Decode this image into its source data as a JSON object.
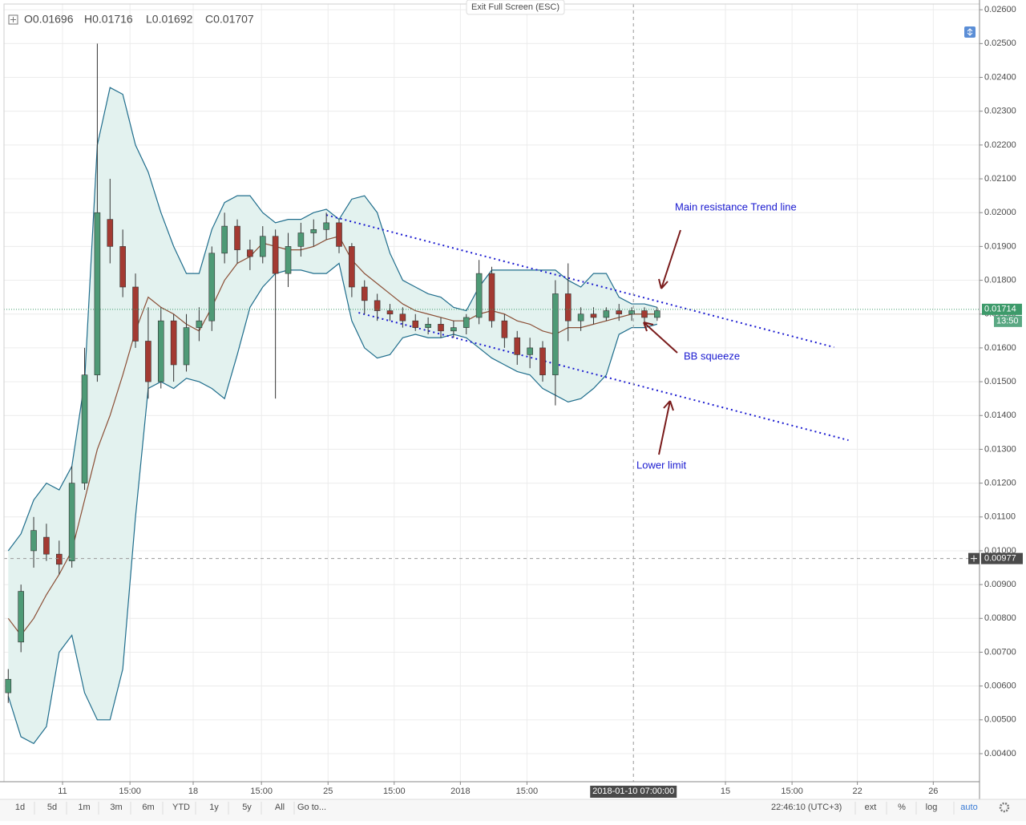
{
  "header_ohlc": [
    "O0.01696",
    "H0.01716",
    "L0.01692",
    "C0.01707"
  ],
  "fullscreen_button": "Exit Full Screen (ESC)",
  "chart_data": {
    "type": "candlestick",
    "x": [
      1,
      4,
      7,
      10,
      13,
      16,
      19,
      22,
      25,
      28,
      31,
      34,
      37,
      40,
      43,
      46,
      49,
      52,
      55,
      58,
      61,
      64,
      67,
      70,
      73,
      76,
      79,
      82,
      85,
      88,
      91,
      94,
      97,
      100,
      103,
      106,
      109,
      112,
      115,
      118,
      121,
      124,
      127,
      130,
      133,
      136,
      139,
      142,
      145,
      148,
      151,
      154
    ],
    "open": [
      0.0058,
      0.0073,
      0.01,
      0.0104,
      0.0099,
      0.0097,
      0.012,
      0.0152,
      0.0198,
      0.019,
      0.0178,
      0.0162,
      0.015,
      0.0168,
      0.0155,
      0.0166,
      0.0168,
      0.0188,
      0.0196,
      0.0189,
      0.0187,
      0.0193,
      0.0182,
      0.019,
      0.0194,
      0.0195,
      0.0197,
      0.019,
      0.0178,
      0.0174,
      0.0171,
      0.017,
      0.0168,
      0.0166,
      0.0167,
      0.0165,
      0.0166,
      0.0169,
      0.0182,
      0.0168,
      0.0163,
      0.0158,
      0.016,
      0.0152,
      0.0176,
      0.0168,
      0.017,
      0.0169,
      0.0171,
      0.017,
      0.0171,
      0.0169
    ],
    "high": [
      0.0065,
      0.009,
      0.011,
      0.0108,
      0.0103,
      0.0125,
      0.016,
      0.025,
      0.021,
      0.0195,
      0.0182,
      0.0172,
      0.0172,
      0.017,
      0.017,
      0.0172,
      0.019,
      0.02,
      0.0198,
      0.0192,
      0.0196,
      0.0195,
      0.0194,
      0.0197,
      0.0198,
      0.02,
      0.0198,
      0.0191,
      0.018,
      0.0176,
      0.0173,
      0.0172,
      0.017,
      0.0169,
      0.0169,
      0.0168,
      0.017,
      0.0186,
      0.0184,
      0.017,
      0.0165,
      0.0163,
      0.0162,
      0.018,
      0.0185,
      0.0172,
      0.0172,
      0.0172,
      0.0173,
      0.0172,
      0.0172,
      0.0172
    ],
    "low": [
      0.0055,
      0.007,
      0.0095,
      0.0097,
      0.0093,
      0.0095,
      0.0118,
      0.015,
      0.0185,
      0.0175,
      0.016,
      0.0145,
      0.0148,
      0.015,
      0.0153,
      0.0162,
      0.0165,
      0.0185,
      0.0185,
      0.0183,
      0.0185,
      0.0145,
      0.0178,
      0.0187,
      0.019,
      0.0192,
      0.0188,
      0.0175,
      0.017,
      0.0168,
      0.0168,
      0.0166,
      0.0165,
      0.0164,
      0.0163,
      0.0163,
      0.0164,
      0.0167,
      0.0166,
      0.016,
      0.0155,
      0.0154,
      0.015,
      0.0143,
      0.0162,
      0.0165,
      0.0167,
      0.0168,
      0.0168,
      0.0168,
      0.0167,
      0.0168
    ],
    "close": [
      0.0062,
      0.0088,
      0.0106,
      0.0099,
      0.0096,
      0.012,
      0.0152,
      0.02,
      0.019,
      0.0178,
      0.0162,
      0.015,
      0.0168,
      0.0155,
      0.0166,
      0.0168,
      0.0188,
      0.0196,
      0.0189,
      0.0187,
      0.0193,
      0.0182,
      0.019,
      0.0194,
      0.0195,
      0.0197,
      0.019,
      0.0178,
      0.0174,
      0.0171,
      0.017,
      0.0168,
      0.0166,
      0.0167,
      0.0165,
      0.0166,
      0.0169,
      0.0182,
      0.0168,
      0.0163,
      0.0158,
      0.016,
      0.0152,
      0.0176,
      0.0168,
      0.017,
      0.0169,
      0.0171,
      0.017,
      0.0171,
      0.0169,
      0.0171
    ],
    "up_color": "#4e9a76",
    "down_color": "#a33a32",
    "bollinger": {
      "upper": [
        0.01,
        0.0105,
        0.0115,
        0.012,
        0.0118,
        0.0125,
        0.015,
        0.022,
        0.0237,
        0.0235,
        0.022,
        0.0212,
        0.02,
        0.019,
        0.0182,
        0.0182,
        0.0195,
        0.0203,
        0.0205,
        0.0205,
        0.02,
        0.0197,
        0.0198,
        0.0198,
        0.02,
        0.0201,
        0.0198,
        0.0204,
        0.0205,
        0.02,
        0.0188,
        0.018,
        0.0178,
        0.0176,
        0.0175,
        0.0172,
        0.0171,
        0.0178,
        0.0183,
        0.0183,
        0.0183,
        0.0183,
        0.0183,
        0.0183,
        0.018,
        0.0178,
        0.0182,
        0.0182,
        0.0175,
        0.0173,
        0.0173,
        0.0172
      ],
      "basis": [
        0.008,
        0.0075,
        0.008,
        0.0087,
        0.0093,
        0.01,
        0.0115,
        0.013,
        0.014,
        0.0152,
        0.0165,
        0.0175,
        0.0172,
        0.017,
        0.0167,
        0.0165,
        0.0172,
        0.018,
        0.0185,
        0.0187,
        0.0191,
        0.019,
        0.0189,
        0.0189,
        0.019,
        0.0192,
        0.0193,
        0.0186,
        0.0182,
        0.0179,
        0.0176,
        0.0173,
        0.0171,
        0.017,
        0.0169,
        0.0168,
        0.0168,
        0.017,
        0.0171,
        0.017,
        0.0168,
        0.0167,
        0.0165,
        0.0164,
        0.0166,
        0.0166,
        0.0167,
        0.0168,
        0.0169,
        0.017,
        0.017,
        0.017
      ],
      "lower": [
        0.0057,
        0.0045,
        0.0043,
        0.0048,
        0.007,
        0.0075,
        0.0058,
        0.005,
        0.005,
        0.0065,
        0.011,
        0.0148,
        0.015,
        0.0148,
        0.0151,
        0.015,
        0.0148,
        0.0145,
        0.0158,
        0.0172,
        0.0178,
        0.0182,
        0.0183,
        0.0183,
        0.0182,
        0.0182,
        0.0185,
        0.0168,
        0.016,
        0.0157,
        0.0158,
        0.0163,
        0.0164,
        0.0163,
        0.0163,
        0.0164,
        0.0163,
        0.016,
        0.0157,
        0.0155,
        0.0153,
        0.0152,
        0.0148,
        0.0146,
        0.0144,
        0.0145,
        0.0148,
        0.0152,
        0.0164,
        0.0166,
        0.0166,
        0.0167
      ],
      "line_color": "#1f6d8c",
      "basis_color": "#8b4f36",
      "fill": "#e3f2ef"
    },
    "xlim": [
      0,
      230
    ],
    "ylim": [
      0.00317,
      0.02617
    ],
    "xticks": [
      {
        "value": 13.8,
        "label": "11"
      },
      {
        "value": 29.7,
        "label": "15:00"
      },
      {
        "value": 44.6,
        "label": "18"
      },
      {
        "value": 60.7,
        "label": "15:00"
      },
      {
        "value": 76.4,
        "label": "25"
      },
      {
        "value": 92,
        "label": "15:00"
      },
      {
        "value": 107.6,
        "label": "2018"
      },
      {
        "value": 123.3,
        "label": "15:00"
      },
      {
        "value": 170.1,
        "label": "15"
      },
      {
        "value": 185.8,
        "label": "15:00"
      },
      {
        "value": 201.2,
        "label": "22"
      },
      {
        "value": 219.1,
        "label": "26"
      }
    ],
    "yticks": [
      {
        "value": 0.004,
        "label": "0.00400"
      },
      {
        "value": 0.005,
        "label": "0.00500"
      },
      {
        "value": 0.006,
        "label": "0.00600"
      },
      {
        "value": 0.007,
        "label": "0.00700"
      },
      {
        "value": 0.008,
        "label": "0.00800"
      },
      {
        "value": 0.009,
        "label": "0.00900"
      },
      {
        "value": 0.01,
        "label": "0.01000"
      },
      {
        "value": 0.011,
        "label": "0.01100"
      },
      {
        "value": 0.012,
        "label": "0.01200"
      },
      {
        "value": 0.013,
        "label": "0.01300"
      },
      {
        "value": 0.014,
        "label": "0.01400"
      },
      {
        "value": 0.015,
        "label": "0.01500"
      },
      {
        "value": 0.016,
        "label": "0.01600"
      },
      {
        "value": 0.017,
        "label": "0.01700"
      },
      {
        "value": 0.018,
        "label": "0.01800"
      },
      {
        "value": 0.019,
        "label": "0.01900"
      },
      {
        "value": 0.02,
        "label": "0.02000"
      },
      {
        "value": 0.021,
        "label": "0.02100"
      },
      {
        "value": 0.022,
        "label": "0.02200"
      },
      {
        "value": 0.023,
        "label": "0.02300"
      },
      {
        "value": 0.024,
        "label": "0.02400"
      },
      {
        "value": 0.025,
        "label": "0.02500"
      },
      {
        "value": 0.026,
        "label": "0.02600"
      }
    ],
    "grid": true,
    "last_price": {
      "value": 0.01714,
      "countdown": "13:50",
      "color": "#3d9a6a"
    },
    "crosshair": {
      "x": {
        "value": 148.4,
        "label": "2018-01-10 07:00:00"
      },
      "y": 0.00977
    },
    "trend_lines": [
      {
        "x": [
          76,
          195.7
        ],
        "y": [
          0.01993,
          0.01602
        ],
        "color": "#1a1ad0"
      },
      {
        "x": [
          83.6,
          199.1
        ],
        "y": [
          0.01704,
          0.01327
        ],
        "color": "#1a1ad0"
      }
    ],
    "annotations": [
      "Main resistance Trend line",
      "BB squeeze",
      "Lower limit"
    ]
  },
  "toolbar": {
    "ranges": [
      "1d",
      "5d",
      "1m",
      "3m",
      "6m",
      "YTD",
      "1y",
      "5y",
      "All"
    ],
    "goto": "Go to...",
    "clock": "22:46:10 (UTC+3)",
    "options": [
      "ext",
      "%",
      "log",
      "auto"
    ]
  }
}
